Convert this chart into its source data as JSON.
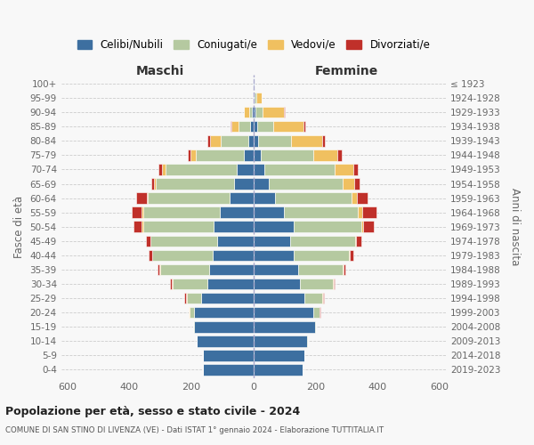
{
  "age_groups": [
    "0-4",
    "5-9",
    "10-14",
    "15-19",
    "20-24",
    "25-29",
    "30-34",
    "35-39",
    "40-44",
    "45-49",
    "50-54",
    "55-59",
    "60-64",
    "65-69",
    "70-74",
    "75-79",
    "80-84",
    "85-89",
    "90-94",
    "95-99",
    "100+"
  ],
  "birth_years": [
    "2019-2023",
    "2014-2018",
    "2009-2013",
    "2004-2008",
    "1999-2003",
    "1994-1998",
    "1989-1993",
    "1984-1988",
    "1979-1983",
    "1974-1978",
    "1969-1973",
    "1964-1968",
    "1959-1963",
    "1954-1958",
    "1949-1953",
    "1944-1948",
    "1939-1943",
    "1934-1938",
    "1929-1933",
    "1924-1928",
    "≤ 1923"
  ],
  "colors": {
    "celibi": "#3d6fa0",
    "coniugati": "#b5c9a0",
    "vedovi": "#f0c060",
    "divorziati": "#c0302a"
  },
  "legend_labels": [
    "Celibi/Nubili",
    "Coniugati/e",
    "Vedovi/e",
    "Divorziati/e"
  ],
  "maschi": {
    "celibi": [
      163,
      163,
      183,
      193,
      193,
      168,
      148,
      143,
      133,
      118,
      128,
      108,
      78,
      62,
      55,
      32,
      18,
      10,
      5,
      2,
      2
    ],
    "coniugati": [
      0,
      0,
      0,
      2,
      13,
      48,
      113,
      158,
      193,
      213,
      228,
      248,
      262,
      252,
      228,
      153,
      88,
      38,
      10,
      0,
      0
    ],
    "vedovi": [
      0,
      0,
      0,
      0,
      2,
      2,
      2,
      2,
      2,
      2,
      4,
      4,
      5,
      8,
      13,
      18,
      33,
      23,
      15,
      2,
      0
    ],
    "divorziati": [
      0,
      0,
      0,
      0,
      2,
      4,
      6,
      6,
      10,
      13,
      28,
      33,
      33,
      8,
      10,
      10,
      10,
      2,
      0,
      0,
      0
    ]
  },
  "femmine": {
    "nubili": [
      158,
      163,
      173,
      198,
      193,
      163,
      148,
      143,
      128,
      118,
      128,
      98,
      68,
      48,
      34,
      24,
      14,
      11,
      7,
      4,
      2
    ],
    "coniugate": [
      0,
      0,
      2,
      4,
      18,
      58,
      108,
      143,
      178,
      208,
      218,
      238,
      248,
      238,
      228,
      168,
      108,
      53,
      23,
      4,
      0
    ],
    "vedove": [
      0,
      0,
      0,
      0,
      2,
      2,
      2,
      3,
      4,
      4,
      8,
      13,
      18,
      38,
      58,
      78,
      98,
      98,
      68,
      18,
      2
    ],
    "divorziate": [
      0,
      0,
      0,
      0,
      2,
      4,
      4,
      6,
      10,
      18,
      33,
      48,
      33,
      18,
      16,
      13,
      10,
      4,
      2,
      0,
      0
    ]
  },
  "title_main": "Popolazione per età, sesso e stato civile - 2024",
  "title_sub": "COMUNE DI SAN STINO DI LIVENZA (VE) - Dati ISTAT 1° gennaio 2024 - Elaborazione TUTTITALIA.IT",
  "ylabel_left": "Fasce di età",
  "ylabel_right": "Anni di nascita",
  "header_left": "Maschi",
  "header_right": "Femmine",
  "xlim": 620,
  "bg_color": "#f8f8f8",
  "grid_color": "#cccccc"
}
